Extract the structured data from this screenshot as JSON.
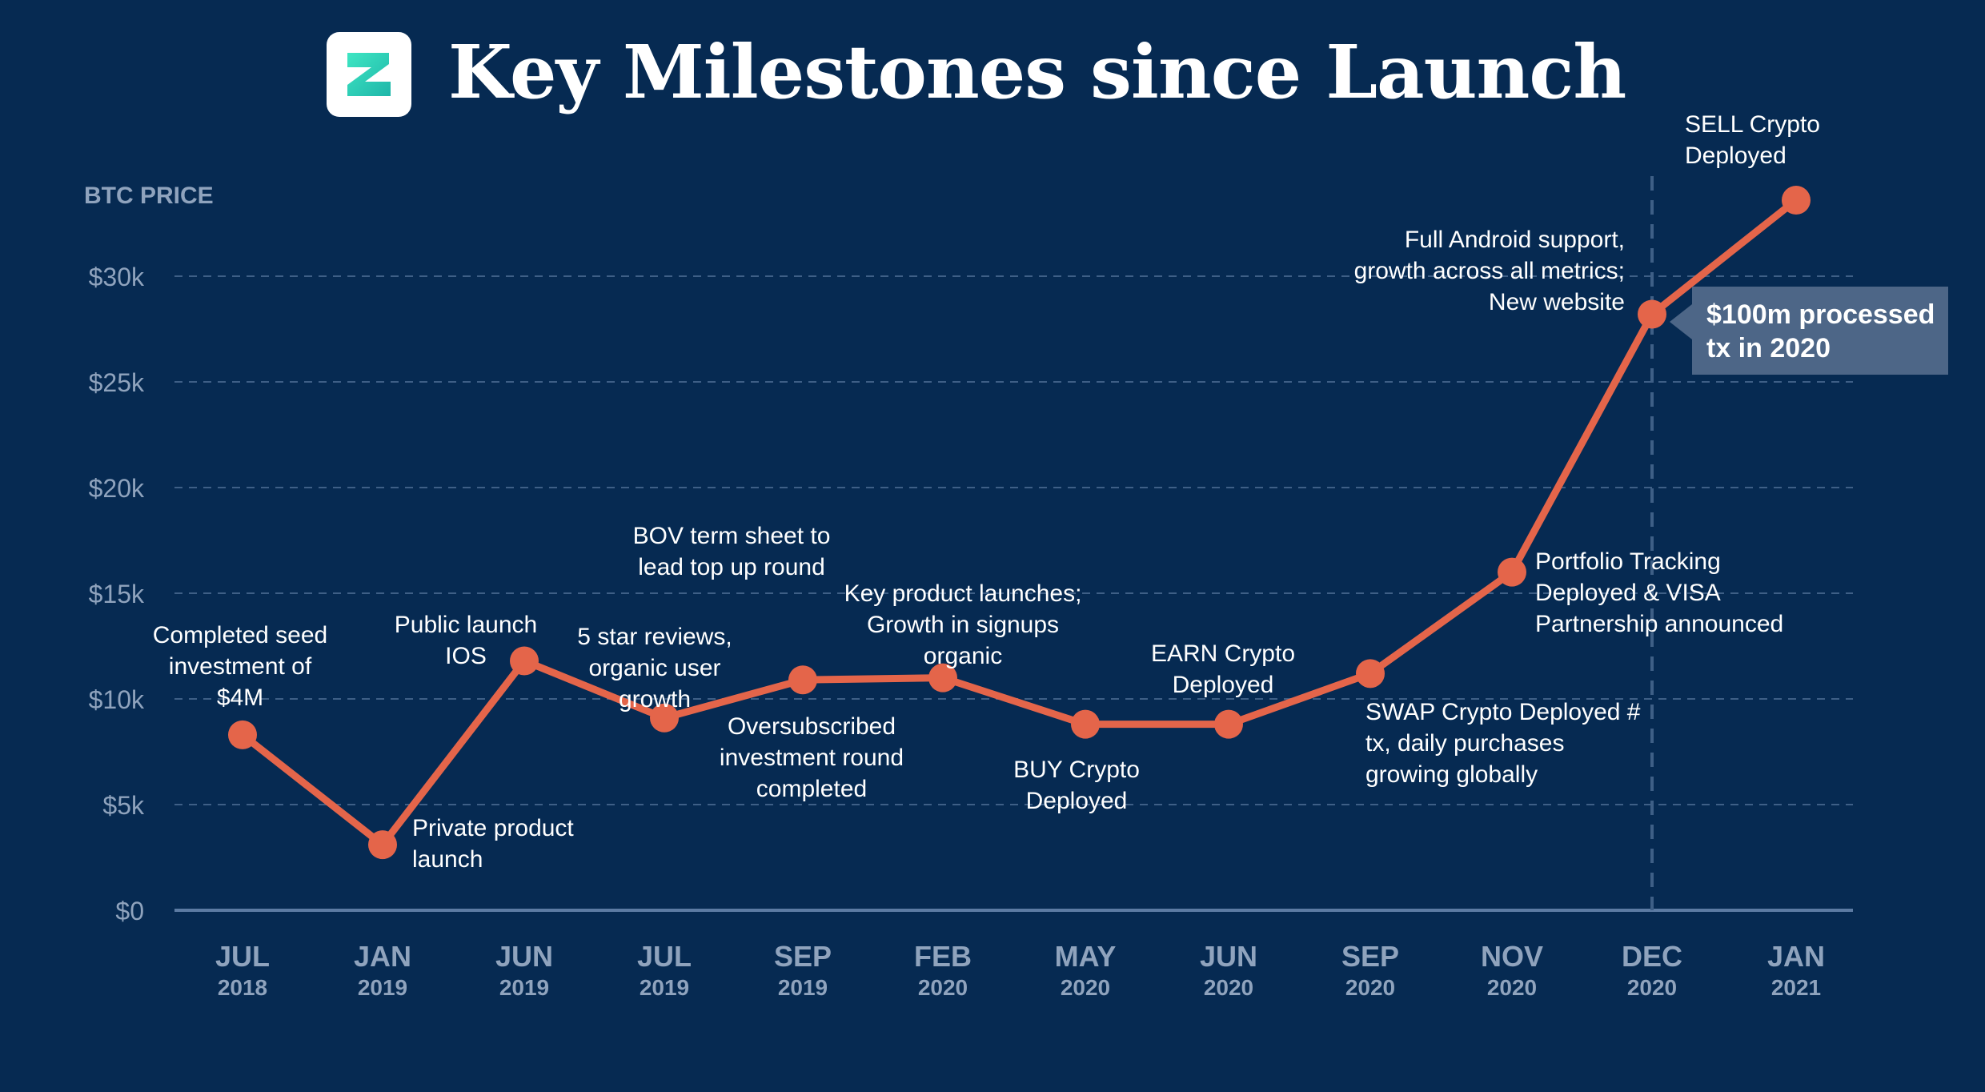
{
  "header": {
    "title": "Key Milestones since Launch",
    "logo_icon": "zap-logo-icon"
  },
  "callout": {
    "line1": "$100m processed",
    "line2": "tx in 2020"
  },
  "chart_data": {
    "type": "line",
    "ylabel": "BTC PRICE",
    "ylim": [
      0,
      32500
    ],
    "grid": true,
    "y_ticks": [
      {
        "value": 0,
        "label": "$0"
      },
      {
        "value": 5000,
        "label": "$5k"
      },
      {
        "value": 10000,
        "label": "$10k"
      },
      {
        "value": 15000,
        "label": "$15k"
      },
      {
        "value": 20000,
        "label": "$20k"
      },
      {
        "value": 25000,
        "label": "$25k"
      },
      {
        "value": 30000,
        "label": "$30k"
      }
    ],
    "categories": [
      {
        "month": "JUL",
        "year": "2018"
      },
      {
        "month": "JAN",
        "year": "2019"
      },
      {
        "month": "JUN",
        "year": "2019"
      },
      {
        "month": "JUL",
        "year": "2019"
      },
      {
        "month": "SEP",
        "year": "2019"
      },
      {
        "month": "FEB",
        "year": "2020"
      },
      {
        "month": "MAY",
        "year": "2020"
      },
      {
        "month": "JUN",
        "year": "2020"
      },
      {
        "month": "SEP",
        "year": "2020"
      },
      {
        "month": "NOV",
        "year": "2020"
      },
      {
        "month": "DEC",
        "year": "2020"
      },
      {
        "month": "JAN",
        "year": "2021"
      }
    ],
    "values": [
      8300,
      3100,
      11800,
      9100,
      10900,
      11000,
      8800,
      8800,
      11200,
      16000,
      28200,
      33600
    ],
    "marker_line": {
      "category_index": 10,
      "style": "dashed"
    },
    "annotations": [
      {
        "index": 0,
        "lines": [
          "Completed seed",
          "investment of",
          "$4M"
        ]
      },
      {
        "index": 1,
        "lines": [
          "Private product",
          "launch"
        ]
      },
      {
        "index": 2,
        "lines": [
          "Public launch",
          "IOS"
        ]
      },
      {
        "index": 3,
        "lines": [
          "5 star reviews,",
          "organic  user",
          "growth"
        ]
      },
      {
        "index": 3,
        "lines": [
          "BOV term sheet to",
          "lead top up round"
        ]
      },
      {
        "index": 4,
        "lines": [
          "Oversubscribed",
          "investment round",
          "completed"
        ]
      },
      {
        "index": 5,
        "lines": [
          "Key product launches;",
          "Growth in signups",
          "organic"
        ]
      },
      {
        "index": 6,
        "lines": [
          "BUY Crypto",
          "Deployed"
        ]
      },
      {
        "index": 7,
        "lines": [
          "EARN Crypto",
          "Deployed"
        ]
      },
      {
        "index": 8,
        "lines": [
          "SWAP Crypto Deployed  #",
          "tx, daily purchases",
          "growing globally"
        ]
      },
      {
        "index": 9,
        "lines": [
          "Portfolio Tracking",
          "Deployed & VISA",
          "Partnership announced"
        ]
      },
      {
        "index": 10,
        "lines": [
          "Full  Android support,",
          "growth across all metrics;",
          "New website"
        ]
      },
      {
        "index": 11,
        "lines": [
          "SELL Crypto",
          "Deployed"
        ]
      }
    ],
    "colors": {
      "line": "#e4654a",
      "point": "#e4654a",
      "grid": "#3e5f86",
      "axis": "#5c7ba3",
      "tick_text": "#8fa3bd",
      "annotation_text": "#ffffff",
      "background": "#062a52"
    }
  }
}
